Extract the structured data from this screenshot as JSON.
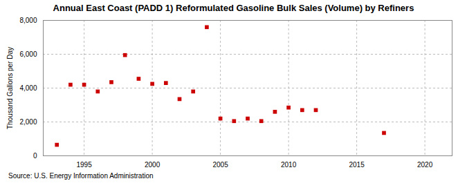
{
  "chart_data": {
    "type": "scatter",
    "title": "Annual East Coast (PADD 1) Reformulated Gasoline Bulk Sales (Volume) by Refiners",
    "ylabel": "Thousand Gallons per Day",
    "annotation": "Source: U.S. Energy Information Administration",
    "x": [
      1993,
      1994,
      1995,
      1996,
      1997,
      1998,
      1999,
      2000,
      2001,
      2002,
      2003,
      2004,
      2005,
      2006,
      2007,
      2008,
      2009,
      2010,
      2011,
      2012,
      2017
    ],
    "values": [
      650,
      4200,
      4200,
      3800,
      4350,
      5950,
      4550,
      4250,
      4300,
      3350,
      3800,
      7600,
      2200,
      2050,
      2200,
      2050,
      2600,
      2850,
      2700,
      2700,
      1350
    ],
    "color": "#cc0000",
    "marker": "square",
    "xlim": [
      1992,
      2022
    ],
    "xticks": [
      1995,
      2000,
      2005,
      2010,
      2015,
      2020
    ],
    "ylim": [
      0,
      8000
    ],
    "yticks": [
      0,
      {
        "value": 2000,
        "label": "2,000"
      },
      {
        "value": 4000,
        "label": "4,000"
      },
      {
        "value": 6000,
        "label": "6,000"
      },
      {
        "value": 8000,
        "label": "8,000"
      }
    ],
    "grid": true
  }
}
